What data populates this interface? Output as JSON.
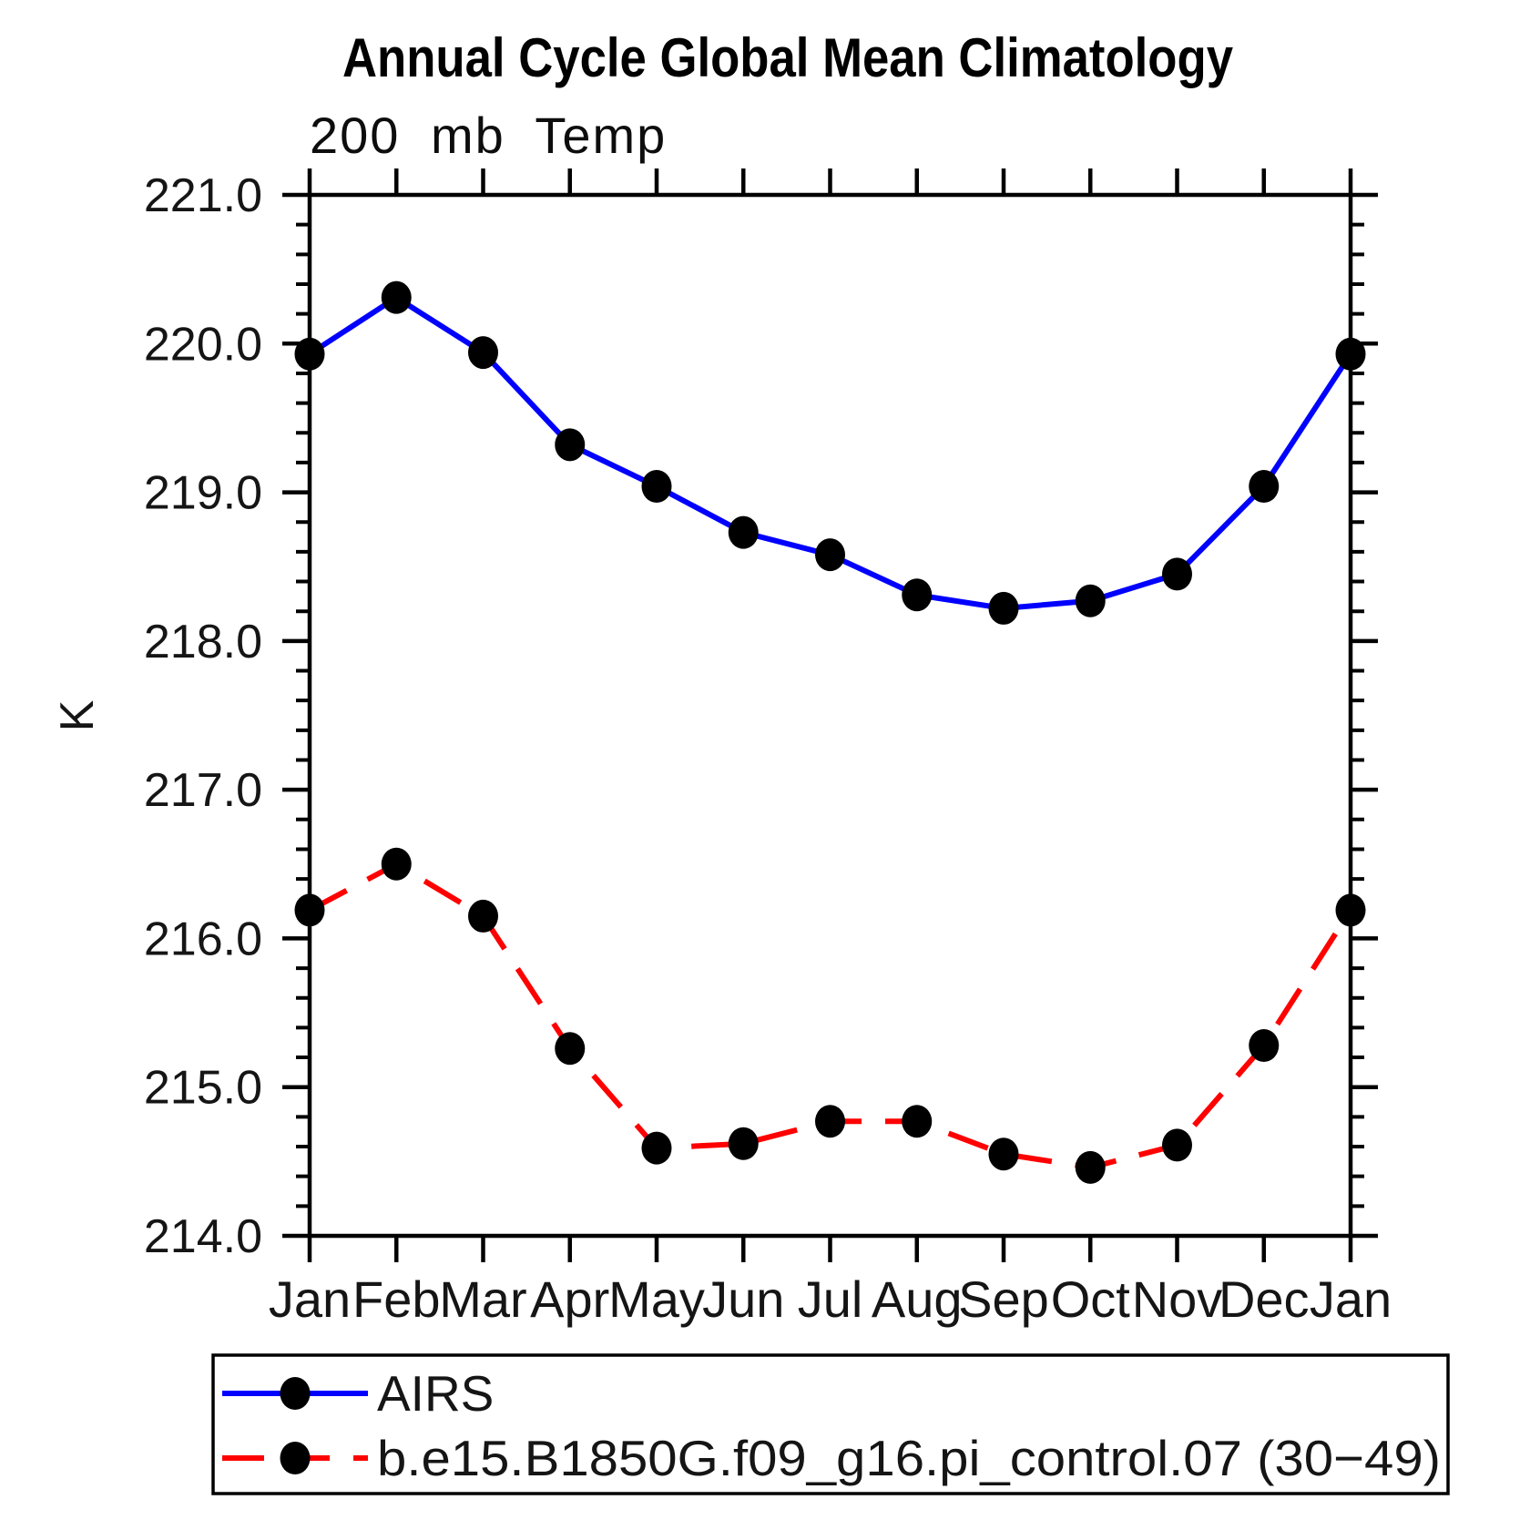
{
  "chart_data": {
    "type": "line",
    "title": "Annual Cycle Global Mean Climatology",
    "subtitle": "200 mb Temp",
    "ylabel": "K",
    "xlabel": "",
    "categories": [
      "Jan",
      "Feb",
      "Mar",
      "Apr",
      "May",
      "Jun",
      "Jul",
      "Aug",
      "Sep",
      "Oct",
      "Nov",
      "Dec",
      "Jan"
    ],
    "ylim": [
      214.0,
      221.0
    ],
    "ytick_major_interval": 1.0,
    "ytick_minor_interval": 0.2,
    "ytick_labels": [
      "221.0",
      "220.0",
      "219.0",
      "218.0",
      "217.0",
      "216.0",
      "215.0",
      "214.0"
    ],
    "grid": false,
    "legend_position": "bottom-left",
    "axis_color": "#000000",
    "marker_shape": "filled-circle",
    "series": [
      {
        "name": "AIRS",
        "color": "#0000ff",
        "style": "solid",
        "marker_color": "#000000",
        "values": [
          219.93,
          220.31,
          219.94,
          219.32,
          219.04,
          218.73,
          218.58,
          218.31,
          218.22,
          218.27,
          218.45,
          219.04,
          219.93
        ]
      },
      {
        "name": "b.e15.B1850G.f09_g16.pi_control.07 (30−49)",
        "color": "#ff0000",
        "style": "dashed",
        "marker_color": "#000000",
        "values": [
          216.19,
          216.5,
          216.15,
          215.26,
          214.59,
          214.62,
          214.77,
          214.77,
          214.55,
          214.46,
          214.61,
          215.28,
          216.19
        ]
      }
    ]
  }
}
